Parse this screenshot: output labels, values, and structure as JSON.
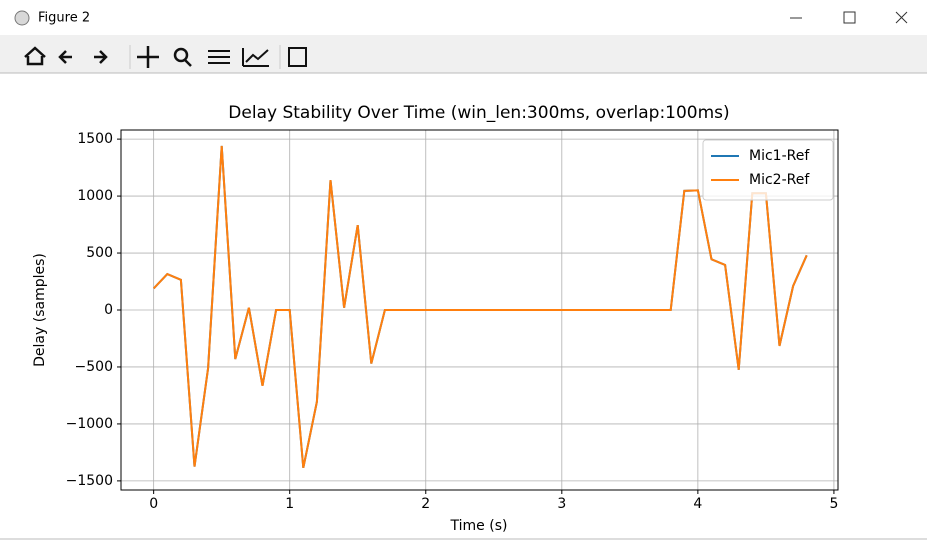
{
  "window": {
    "title": "Figure 2"
  },
  "chart_data": {
    "type": "line",
    "title": "Delay Stability Over Time (win_len:300ms, overlap:100ms)",
    "x_label": "Time (s)",
    "y_label": "Delay (samples)",
    "x": [
      0,
      0.1,
      0.2,
      0.3,
      0.4,
      0.5,
      0.6,
      0.7,
      0.8,
      0.9,
      1.0,
      1.1,
      1.2,
      1.3,
      1.4,
      1.5,
      1.6,
      1.7,
      1.8,
      1.9,
      2.0,
      2.1,
      2.2,
      2.3,
      2.4,
      2.5,
      2.6,
      2.7,
      2.8,
      2.9,
      3.0,
      3.1,
      3.2,
      3.3,
      3.4,
      3.5,
      3.6,
      3.7,
      3.8,
      3.9,
      4.0,
      4.1,
      4.2,
      4.3,
      4.4,
      4.5,
      4.6,
      4.7,
      4.8
    ],
    "series": [
      {
        "name": "Mic1-Ref",
        "color": "#1f77b4",
        "values": [
          190,
          315,
          265,
          -1375,
          -510,
          1440,
          -430,
          20,
          -665,
          0,
          0,
          -1385,
          -805,
          1140,
          20,
          745,
          -470,
          0,
          0,
          0,
          0,
          0,
          0,
          0,
          0,
          0,
          0,
          0,
          0,
          0,
          0,
          0,
          0,
          0,
          0,
          0,
          0,
          0,
          0,
          1045,
          1050,
          445,
          395,
          -525,
          1025,
          1025,
          -315,
          210,
          480
        ]
      },
      {
        "name": "Mic2-Ref",
        "color": "#ff7f0e",
        "values": [
          190,
          315,
          265,
          -1375,
          -510,
          1440,
          -430,
          20,
          -665,
          0,
          0,
          -1385,
          -805,
          1140,
          20,
          745,
          -470,
          0,
          0,
          0,
          0,
          0,
          0,
          0,
          0,
          0,
          0,
          0,
          0,
          0,
          0,
          0,
          0,
          0,
          0,
          0,
          0,
          0,
          0,
          1045,
          1050,
          445,
          395,
          -525,
          1025,
          1025,
          -315,
          210,
          480
        ]
      }
    ],
    "xlim": [
      -0.24,
      5.03
    ],
    "ylim": [
      -1580,
      1580
    ],
    "xticks": [
      0,
      1,
      2,
      3,
      4,
      5
    ],
    "yticks": [
      {
        "value": -1500,
        "label": "−1500"
      },
      {
        "value": -1000,
        "label": "−1000"
      },
      {
        "value": -500,
        "label": "−500"
      },
      0,
      500,
      1000,
      1500
    ],
    "grid": true,
    "legend": "upper right"
  }
}
